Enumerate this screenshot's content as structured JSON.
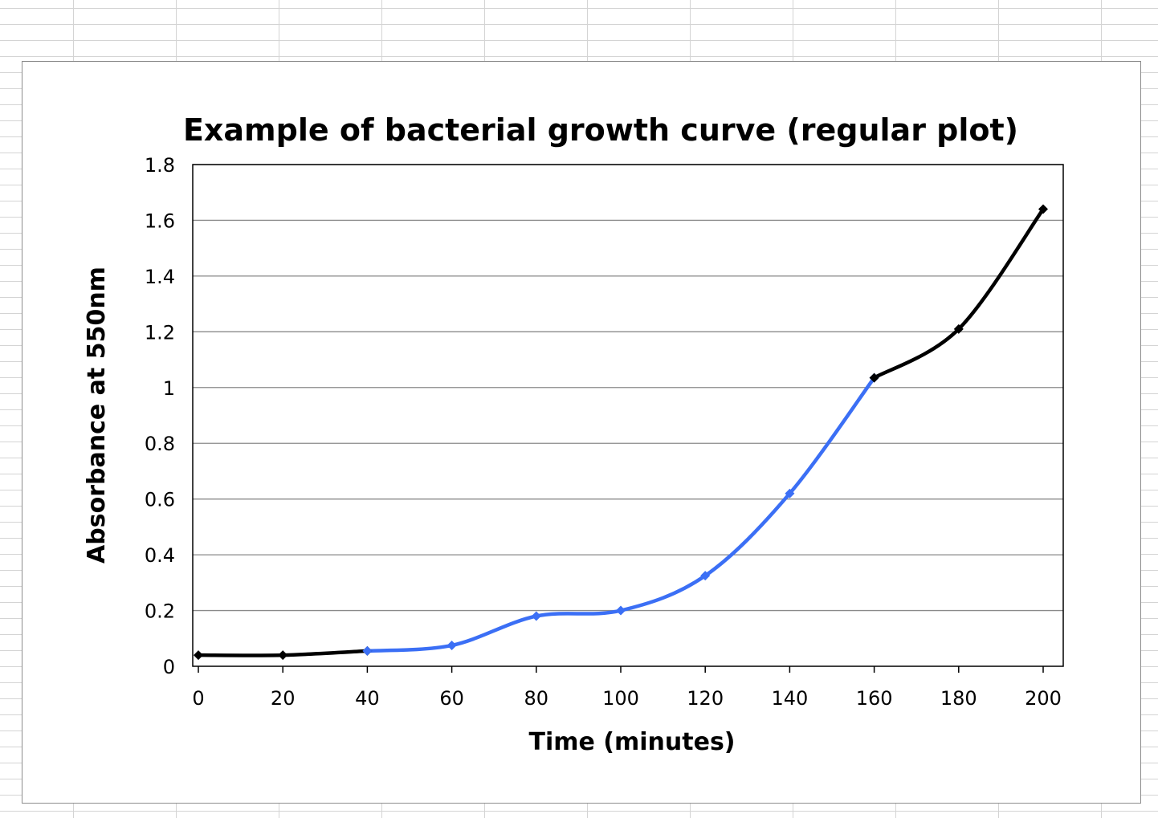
{
  "chart_data": {
    "type": "line",
    "title": "Example of bacterial growth curve (regular plot)",
    "xlabel": "Time (minutes)",
    "ylabel": "Absorbance at 550nm",
    "x": [
      0,
      20,
      40,
      60,
      80,
      100,
      120,
      140,
      160,
      180,
      200
    ],
    "xlim": [
      0,
      200
    ],
    "ylim": [
      0,
      1.8
    ],
    "x_ticks": [
      "0",
      "20",
      "40",
      "60",
      "80",
      "100",
      "120",
      "140",
      "160",
      "180",
      "200"
    ],
    "y_ticks": [
      "0",
      "0.2",
      "0.4",
      "0.6",
      "0.8",
      "1",
      "1.2",
      "1.4",
      "1.6",
      "1.8"
    ],
    "smoothed": true,
    "grid": "horizontal",
    "legend": "none",
    "series": [
      {
        "x": [
          0,
          20,
          40
        ],
        "values": [
          0.04,
          0.04,
          0.055
        ],
        "color": "#000000"
      },
      {
        "x": [
          40,
          60,
          80,
          100,
          120,
          140,
          160
        ],
        "values": [
          0.055,
          0.075,
          0.18,
          0.2,
          0.325,
          0.62,
          1.035
        ],
        "color": "#3b6ff5"
      },
      {
        "x": [
          160,
          180,
          200
        ],
        "values": [
          1.035,
          1.21,
          1.64
        ],
        "color": "#000000"
      }
    ]
  }
}
